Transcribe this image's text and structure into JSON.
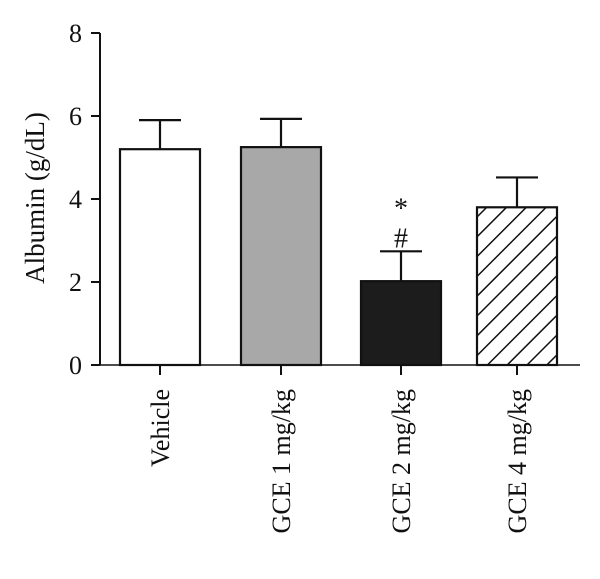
{
  "chart_data": {
    "type": "bar",
    "title": "",
    "xlabel": "",
    "ylabel": "Albumin (g/dL)",
    "ylim": [
      0,
      8
    ],
    "yticks": [
      "0",
      "2",
      "4",
      "6",
      "8"
    ],
    "grid": false,
    "categories": [
      "Vehicle",
      "GCE 1 mg/kg",
      "GCE 2 mg/kg",
      "GCE 4 mg/kg"
    ],
    "values": [
      5.2,
      5.25,
      2.02,
      3.8
    ],
    "errors": [
      0.7,
      0.68,
      0.72,
      0.72
    ],
    "fills": [
      "#ffffff",
      "#a8a8a8",
      "#1c1c1c",
      "hatch"
    ],
    "annotations": [
      {
        "category": "GCE 2 mg/kg",
        "symbols": [
          "*",
          "#"
        ]
      }
    ]
  }
}
